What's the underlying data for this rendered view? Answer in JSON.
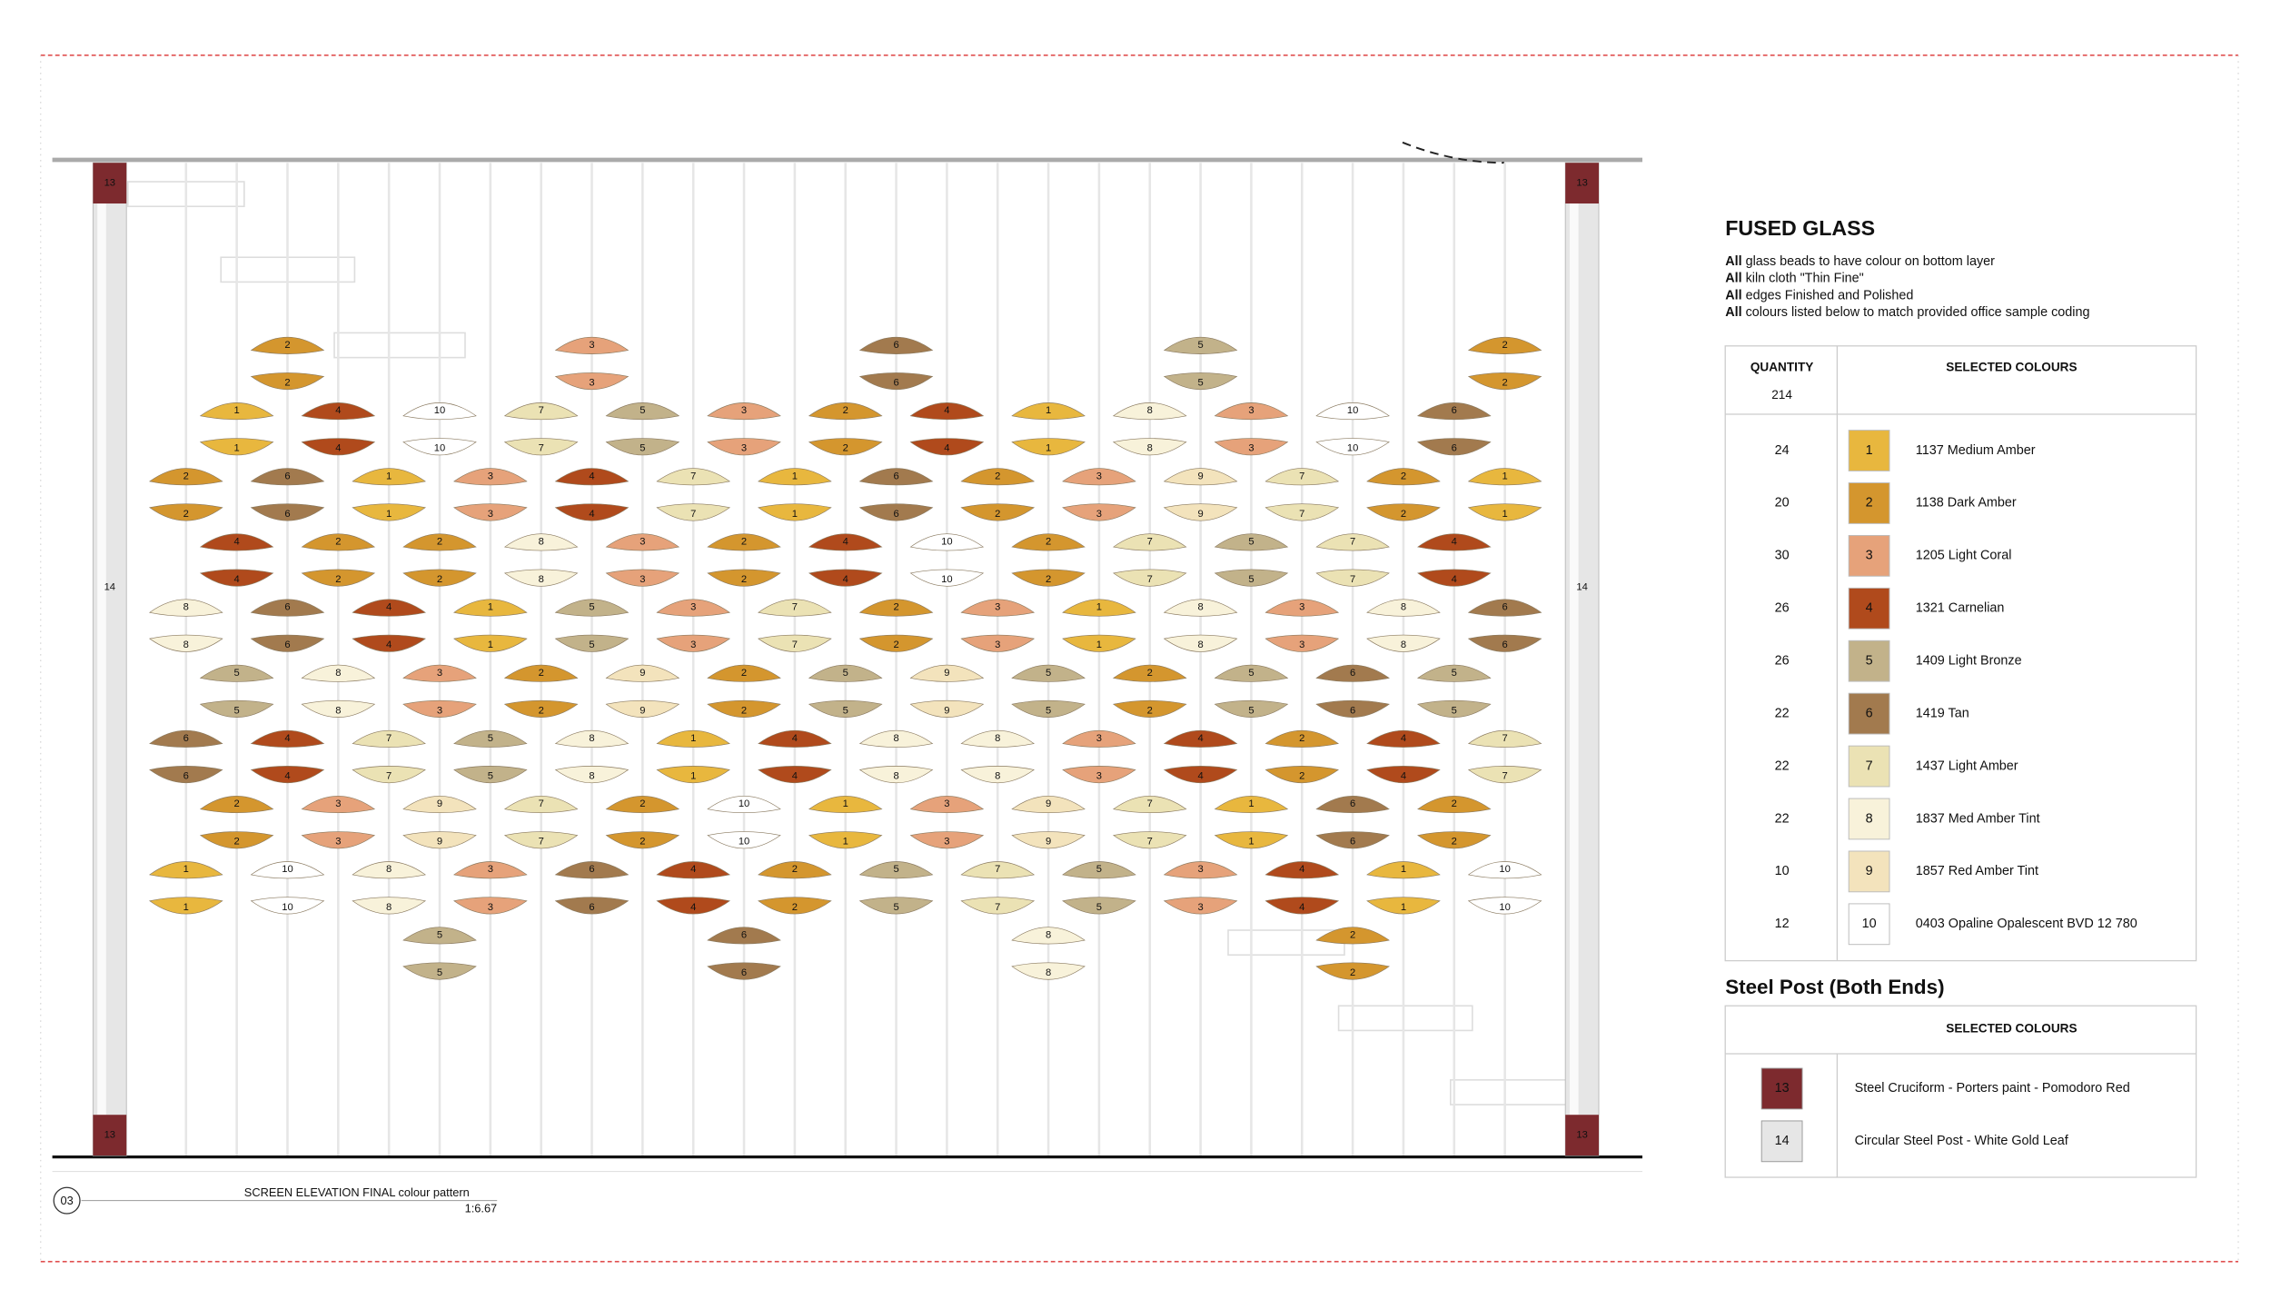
{
  "drawing": {
    "post_cap_label": "13",
    "post_body_label": "14",
    "reference": "03",
    "caption": "SCREEN ELEVATION FINAL colour pattern",
    "scale": "1:6.67",
    "bead_rows": [
      [
        null,
        2,
        null,
        null,
        3,
        null,
        null,
        6,
        null,
        null,
        5,
        null,
        null,
        2
      ],
      [
        1,
        4,
        10,
        7,
        5,
        3,
        2,
        4,
        1,
        8,
        3,
        10,
        6
      ],
      [
        2,
        6,
        1,
        3,
        4,
        7,
        1,
        6,
        2,
        3,
        9,
        7,
        2,
        1
      ],
      [
        4,
        2,
        2,
        8,
        3,
        2,
        4,
        10,
        2,
        7,
        5,
        7,
        4
      ],
      [
        8,
        6,
        4,
        1,
        5,
        3,
        7,
        2,
        3,
        1,
        8,
        3,
        8,
        6
      ],
      [
        5,
        8,
        3,
        2,
        9,
        2,
        5,
        9,
        5,
        2,
        5,
        6,
        5
      ],
      [
        6,
        4,
        7,
        5,
        8,
        1,
        4,
        8,
        8,
        3,
        4,
        2,
        4,
        7
      ],
      [
        2,
        3,
        9,
        7,
        2,
        10,
        1,
        3,
        9,
        7,
        1,
        6,
        2
      ],
      [
        1,
        10,
        8,
        3,
        6,
        4,
        2,
        5,
        7,
        5,
        3,
        4,
        1,
        10
      ],
      [
        null,
        null,
        5,
        null,
        null,
        6,
        null,
        null,
        8,
        null,
        null,
        2,
        null
      ]
    ]
  },
  "legend": {
    "title": "FUSED GLASS",
    "notes": [
      {
        "bold": "All",
        "text": "glass beads to have colour on bottom layer"
      },
      {
        "bold": "All",
        "text": "kiln cloth \"Thin Fine\""
      },
      {
        "bold": "All",
        "text": "edges Finished and Polished"
      },
      {
        "bold": "All",
        "text": "colours listed below to match provided office sample coding"
      }
    ],
    "quantity_header": "QUANTITY",
    "total": "214",
    "colours_header": "SELECTED COLOURS",
    "entries": [
      {
        "quantity": 24,
        "code": 1,
        "name": "1137 Medium Amber",
        "color": "#e8b73e"
      },
      {
        "quantity": 20,
        "code": 2,
        "name": "1138 Dark Amber",
        "color": "#d4962e"
      },
      {
        "quantity": 30,
        "code": 3,
        "name": "1205 Light Coral",
        "color": "#e6a27a"
      },
      {
        "quantity": 26,
        "code": 4,
        "name": "1321 Carnelian",
        "color": "#b04a1c"
      },
      {
        "quantity": 26,
        "code": 5,
        "name": "1409 Light Bronze",
        "color": "#c2b28a"
      },
      {
        "quantity": 22,
        "code": 6,
        "name": "1419 Tan",
        "color": "#a27a4e"
      },
      {
        "quantity": 22,
        "code": 7,
        "name": "1437 Light Amber",
        "color": "#ebe2b4"
      },
      {
        "quantity": 22,
        "code": 8,
        "name": "1837 Med Amber Tint",
        "color": "#f8f2da"
      },
      {
        "quantity": 10,
        "code": 9,
        "name": "1857 Red Amber Tint",
        "color": "#f3e3bc"
      },
      {
        "quantity": 12,
        "code": 10,
        "name": "0403 Opaline Opalescent BVD 12 780",
        "color": "#ffffff"
      }
    ]
  },
  "steel": {
    "title": "Steel Post (Both Ends)",
    "colours_header": "SELECTED COLOURS",
    "entries": [
      {
        "code": 13,
        "name": "Steel Cruciform - Porters paint - Pomodoro Red",
        "color": "#7d2a2e"
      },
      {
        "code": 14,
        "name": "Circular Steel Post - White Gold Leaf",
        "color": "#e6e6e6"
      }
    ]
  }
}
